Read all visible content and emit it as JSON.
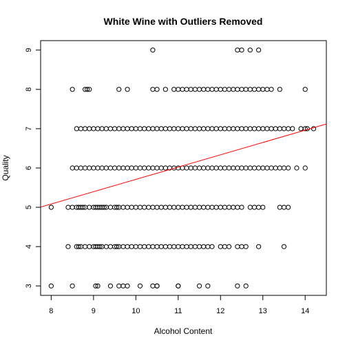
{
  "chart_data": {
    "type": "scatter",
    "title": "White Wine with Outliers Removed",
    "xlabel": "Alcohol Content",
    "ylabel": "Quality",
    "xlim": [
      7.75,
      14.5
    ],
    "ylim": [
      2.76,
      9.24
    ],
    "xticks": [
      8,
      9,
      10,
      11,
      12,
      13,
      14
    ],
    "yticks": [
      3,
      4,
      5,
      6,
      7,
      8,
      9
    ],
    "grid": false,
    "legend": "none",
    "marker": "open-circle",
    "point_color": "#000000",
    "trend_line": {
      "intercept": 2.58,
      "slope": 0.313,
      "color": "#ff0000"
    },
    "series": [
      {
        "quality": 3,
        "x": [
          8.0,
          8.5,
          9.05,
          9.1,
          9.4,
          9.6,
          9.7,
          9.8,
          10.1,
          10.4,
          10.5,
          10.5,
          11.0,
          11.0,
          11.5,
          11.7,
          12.4,
          12.6
        ]
      },
      {
        "quality": 4,
        "x": [
          8.4,
          8.6,
          8.65,
          8.7,
          8.8,
          8.9,
          9.0,
          9.05,
          9.1,
          9.15,
          9.2,
          9.3,
          9.4,
          9.5,
          9.55,
          9.6,
          9.7,
          9.8,
          9.9,
          10.0,
          10.1,
          10.2,
          10.3,
          10.4,
          10.5,
          10.6,
          10.7,
          10.8,
          10.9,
          11.0,
          11.1,
          11.2,
          11.3,
          11.4,
          11.5,
          11.6,
          11.7,
          11.8,
          12.0,
          12.1,
          12.2,
          12.4,
          12.5,
          12.6,
          12.9,
          13.5
        ]
      },
      {
        "quality": 5,
        "x": [
          8.0,
          8.4,
          8.5,
          8.6,
          8.65,
          8.7,
          8.75,
          8.8,
          8.9,
          9.0,
          9.05,
          9.1,
          9.15,
          9.2,
          9.25,
          9.3,
          9.4,
          9.5,
          9.55,
          9.6,
          9.7,
          9.8,
          9.9,
          10.0,
          10.1,
          10.2,
          10.3,
          10.4,
          10.5,
          10.6,
          10.7,
          10.8,
          10.9,
          11.0,
          11.1,
          11.2,
          11.3,
          11.4,
          11.5,
          11.6,
          11.7,
          11.8,
          11.9,
          12.0,
          12.1,
          12.2,
          12.3,
          12.4,
          12.5,
          12.7,
          12.8,
          12.9,
          13.0,
          13.4,
          13.5,
          13.6
        ]
      },
      {
        "quality": 6,
        "x": [
          8.5,
          8.6,
          8.7,
          8.8,
          8.9,
          9.0,
          9.1,
          9.2,
          9.3,
          9.4,
          9.5,
          9.6,
          9.7,
          9.8,
          9.9,
          10.0,
          10.1,
          10.2,
          10.3,
          10.4,
          10.5,
          10.6,
          10.7,
          10.8,
          10.9,
          11.0,
          11.1,
          11.2,
          11.3,
          11.4,
          11.5,
          11.6,
          11.7,
          11.8,
          11.9,
          12.0,
          12.1,
          12.2,
          12.3,
          12.4,
          12.5,
          12.6,
          12.7,
          12.8,
          12.9,
          13.0,
          13.1,
          13.2,
          13.3,
          13.4,
          13.5,
          13.6,
          13.8,
          14.0
        ]
      },
      {
        "quality": 7,
        "x": [
          8.6,
          8.7,
          8.8,
          8.9,
          9.0,
          9.1,
          9.2,
          9.3,
          9.4,
          9.5,
          9.6,
          9.7,
          9.8,
          9.9,
          10.0,
          10.1,
          10.2,
          10.3,
          10.4,
          10.5,
          10.6,
          10.7,
          10.8,
          10.9,
          11.0,
          11.1,
          11.2,
          11.3,
          11.4,
          11.5,
          11.6,
          11.7,
          11.8,
          11.9,
          12.0,
          12.1,
          12.2,
          12.3,
          12.4,
          12.5,
          12.6,
          12.7,
          12.8,
          12.9,
          13.0,
          13.1,
          13.2,
          13.3,
          13.4,
          13.5,
          13.6,
          13.7,
          13.9,
          14.0,
          14.05,
          14.2
        ]
      },
      {
        "quality": 8,
        "x": [
          8.5,
          8.8,
          8.85,
          8.9,
          9.6,
          9.8,
          10.4,
          10.5,
          10.7,
          10.9,
          11.0,
          11.1,
          11.2,
          11.3,
          11.4,
          11.5,
          11.6,
          11.7,
          11.8,
          11.9,
          12.0,
          12.1,
          12.2,
          12.3,
          12.4,
          12.5,
          12.6,
          12.7,
          12.8,
          12.9,
          13.0,
          13.1,
          13.2,
          13.4,
          14.0
        ]
      },
      {
        "quality": 9,
        "x": [
          10.4,
          12.4,
          12.5,
          12.7,
          12.9
        ]
      }
    ]
  }
}
